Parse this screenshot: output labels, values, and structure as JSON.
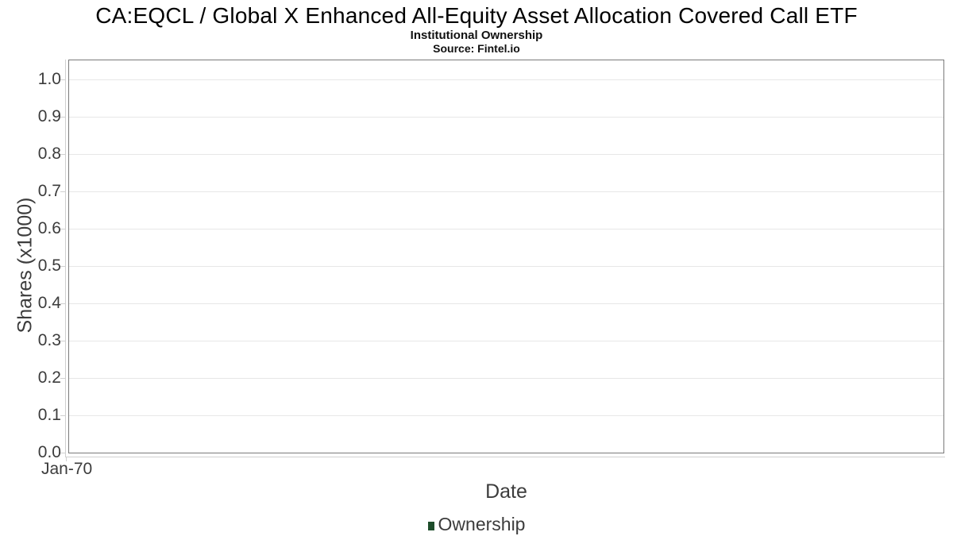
{
  "header": {
    "title": "CA:EQCL / Global X Enhanced All-Equity Asset Allocation Covered Call ETF",
    "subtitle": "Institutional Ownership",
    "source": "Source: Fintel.io"
  },
  "chart_data": {
    "type": "line",
    "title": "CA:EQCL / Global X Enhanced All-Equity Asset Allocation Covered Call ETF",
    "subtitle": "Institutional Ownership",
    "source": "Source: Fintel.io",
    "xlabel": "Date",
    "ylabel": "Shares (x1000)",
    "x_ticks": [
      "Jan-70"
    ],
    "y_ticks": [
      "0.0",
      "0.1",
      "0.2",
      "0.3",
      "0.4",
      "0.5",
      "0.6",
      "0.7",
      "0.8",
      "0.9",
      "1.0"
    ],
    "ylim": [
      0.0,
      1.05
    ],
    "grid": "horizontal-only",
    "legend_position": "bottom-center",
    "legend": {
      "entries": [
        {
          "label": "Ownership",
          "color": "#1e4d2b"
        }
      ]
    },
    "series": [
      {
        "name": "Ownership",
        "points": []
      }
    ]
  },
  "colors": {
    "title_text": "#000000",
    "tick_text": "#3c3c3c",
    "plot_border": "#7a7a7a",
    "grid_line": "#e7e7e7",
    "axis_line": "#d0d0d0",
    "series_green": "#1e4d2b"
  }
}
